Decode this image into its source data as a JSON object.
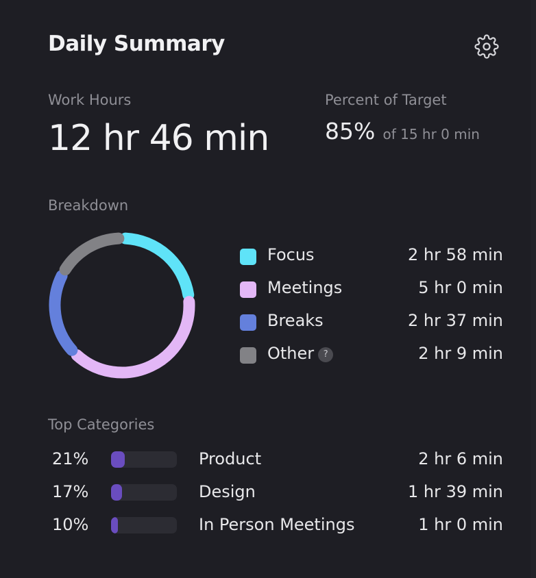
{
  "header": {
    "title": "Daily Summary",
    "settings_icon": "gear-icon"
  },
  "work_hours": {
    "label": "Work Hours",
    "value": "12 hr 46 min"
  },
  "percent_of_target": {
    "label": "Percent of Target",
    "value": "85%",
    "of_text": "of 15 hr 0 min"
  },
  "breakdown": {
    "label": "Breakdown",
    "help_glyph": "?",
    "items": [
      {
        "label": "Focus",
        "value": "2 hr 58 min",
        "minutes": 178,
        "color": "#5fe3f8"
      },
      {
        "label": "Meetings",
        "value": "5 hr 0 min",
        "minutes": 300,
        "color": "#e3b7f6"
      },
      {
        "label": "Breaks",
        "value": "2 hr 37 min",
        "minutes": 157,
        "color": "#6480dc"
      },
      {
        "label": "Other",
        "value": "2 hr 9 min",
        "minutes": 129,
        "color": "#828286",
        "has_help": true
      }
    ]
  },
  "top_categories": {
    "label": "Top Categories",
    "bar_color": "#6a4dbf",
    "items": [
      {
        "percent": "21%",
        "fraction": 0.21,
        "name": "Product",
        "value": "2 hr 6 min"
      },
      {
        "percent": "17%",
        "fraction": 0.17,
        "name": "Design",
        "value": "1 hr 39 min"
      },
      {
        "percent": "10%",
        "fraction": 0.1,
        "name": "In Person Meetings",
        "value": "1 hr 0 min"
      }
    ]
  }
}
